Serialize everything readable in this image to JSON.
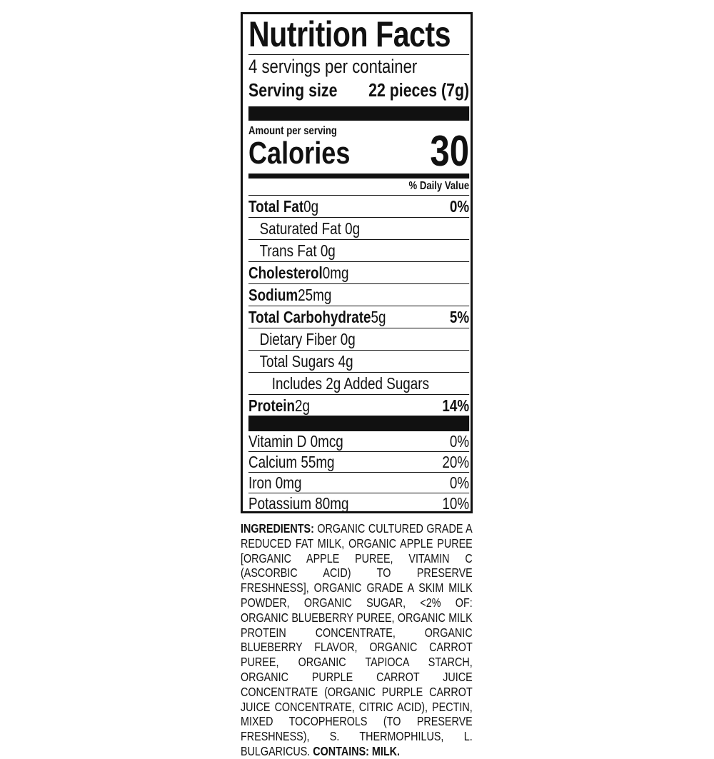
{
  "title": "Nutrition Facts",
  "servings_per_container": "4 servings per container",
  "serving_size": {
    "label": "Serving size",
    "value": "22 pieces (7g)"
  },
  "amount_per_serving": "Amount per serving",
  "calories": {
    "label": "Calories",
    "value": "30"
  },
  "daily_value_header": "% Daily Value",
  "nutrients": [
    {
      "name": "Total Fat",
      "amount": "0g",
      "dv": "0%",
      "bold": true,
      "indent": 0
    },
    {
      "name": "Saturated Fat",
      "amount": "0g",
      "dv": "",
      "bold": false,
      "indent": 1
    },
    {
      "name": "Trans Fat",
      "amount": "0g",
      "dv": "",
      "bold": false,
      "indent": 1
    },
    {
      "name": "Cholesterol",
      "amount": "0mg",
      "dv": "",
      "bold": true,
      "indent": 0
    },
    {
      "name": "Sodium",
      "amount": "25mg",
      "dv": "",
      "bold": true,
      "indent": 0
    },
    {
      "name": "Total Carbohydrate",
      "amount": "5g",
      "dv": "5%",
      "bold": true,
      "indent": 0
    },
    {
      "name": "Dietary Fiber",
      "amount": "0g",
      "dv": "",
      "bold": false,
      "indent": 1
    },
    {
      "name": "Total Sugars",
      "amount": "4g",
      "dv": "",
      "bold": false,
      "indent": 1
    },
    {
      "name": "Includes 2g Added Sugars",
      "amount": "",
      "dv": "",
      "bold": false,
      "indent": 2
    },
    {
      "name": "Protein",
      "amount": "2g",
      "dv": "14%",
      "bold": true,
      "indent": 0
    }
  ],
  "vitamins": [
    {
      "name": "Vitamin D 0mcg",
      "dv": "0%"
    },
    {
      "name": "Calcium 55mg",
      "dv": "20%"
    },
    {
      "name": "Iron 0mg",
      "dv": "0%"
    },
    {
      "name": "Potassium 80mg",
      "dv": "10%"
    }
  ],
  "ingredients": {
    "label": "INGREDIENTS:",
    "text": "ORGANIC CULTURED GRADE A REDUCED FAT MILK, ORGANIC APPLE PUREE [ORGANIC APPLE PUREE, VITAMIN C (ASCORBIC ACID) TO PRESERVE FRESHNESS], ORGANIC GRADE A SKIM MILK POWDER, ORGANIC SUGAR, <2% OF: ORGANIC BLUEBERRY PUREE, ORGANIC MILK PROTEIN CONCENTRATE, ORGANIC BLUEBERRY FLAVOR, ORGANIC CARROT PUREE, ORGANIC TAPIOCA STARCH, ORGANIC PURPLE CARROT JUICE CONCENTRATE (ORGANIC PURPLE CARROT JUICE CONCENTRATE, CITRIC ACID), PECTIN, MIXED TOCOPHEROLS (TO PRESERVE FRESHNESS), S. THERMOPHILUS, L. BULGARICUS.",
    "contains": "CONTAINS: MILK."
  }
}
